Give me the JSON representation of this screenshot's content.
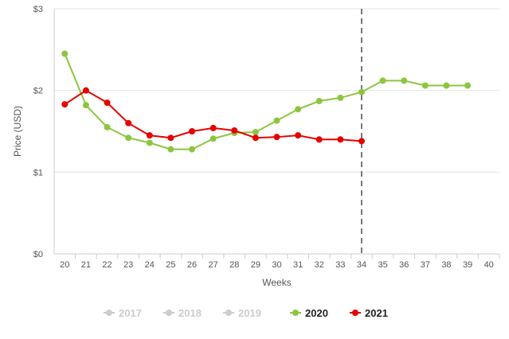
{
  "chart_data": {
    "type": "line",
    "xlabel": "Weeks",
    "ylabel": "Price (USD)",
    "x": [
      20,
      21,
      22,
      23,
      24,
      25,
      26,
      27,
      28,
      29,
      30,
      31,
      32,
      33,
      34,
      35,
      36,
      37,
      38,
      39,
      40
    ],
    "x_tick_labels": [
      "20",
      "21",
      "22",
      "23",
      "24",
      "25",
      "26",
      "27",
      "28",
      "29",
      "30",
      "31",
      "32",
      "33",
      "34",
      "35",
      "36",
      "37",
      "38",
      "39",
      "40"
    ],
    "ylim": [
      0,
      3
    ],
    "y_ticks": [
      0,
      1,
      2,
      3
    ],
    "y_tick_labels": [
      "$0",
      "$1",
      "$2",
      "$3"
    ],
    "grid": "horizontal",
    "current_week_marker": 34,
    "legend_position": "bottom",
    "series": [
      {
        "name": "2020",
        "color": "#8cc63f",
        "visible": true,
        "x": [
          20,
          21,
          22,
          23,
          24,
          25,
          26,
          27,
          28,
          29,
          30,
          31,
          32,
          33,
          34,
          35,
          36,
          37,
          38,
          39
        ],
        "values": [
          2.45,
          1.82,
          1.55,
          1.42,
          1.36,
          1.28,
          1.28,
          1.41,
          1.48,
          1.49,
          1.63,
          1.77,
          1.87,
          1.91,
          1.98,
          2.12,
          2.12,
          2.06,
          2.06,
          2.06
        ]
      },
      {
        "name": "2021",
        "color": "#e60000",
        "visible": true,
        "x": [
          20,
          21,
          22,
          23,
          24,
          25,
          26,
          27,
          28,
          29,
          30,
          31,
          32,
          33,
          34
        ],
        "values": [
          1.83,
          2.0,
          1.85,
          1.6,
          1.45,
          1.42,
          1.5,
          1.54,
          1.51,
          1.42,
          1.43,
          1.45,
          1.4,
          1.4,
          1.38
        ]
      }
    ],
    "legend": [
      {
        "name": "2017",
        "color": "#cccccc",
        "visible": false
      },
      {
        "name": "2018",
        "color": "#cccccc",
        "visible": false
      },
      {
        "name": "2019",
        "color": "#cccccc",
        "visible": false
      },
      {
        "name": "2020",
        "color": "#8cc63f",
        "visible": true
      },
      {
        "name": "2021",
        "color": "#e60000",
        "visible": true
      }
    ]
  }
}
